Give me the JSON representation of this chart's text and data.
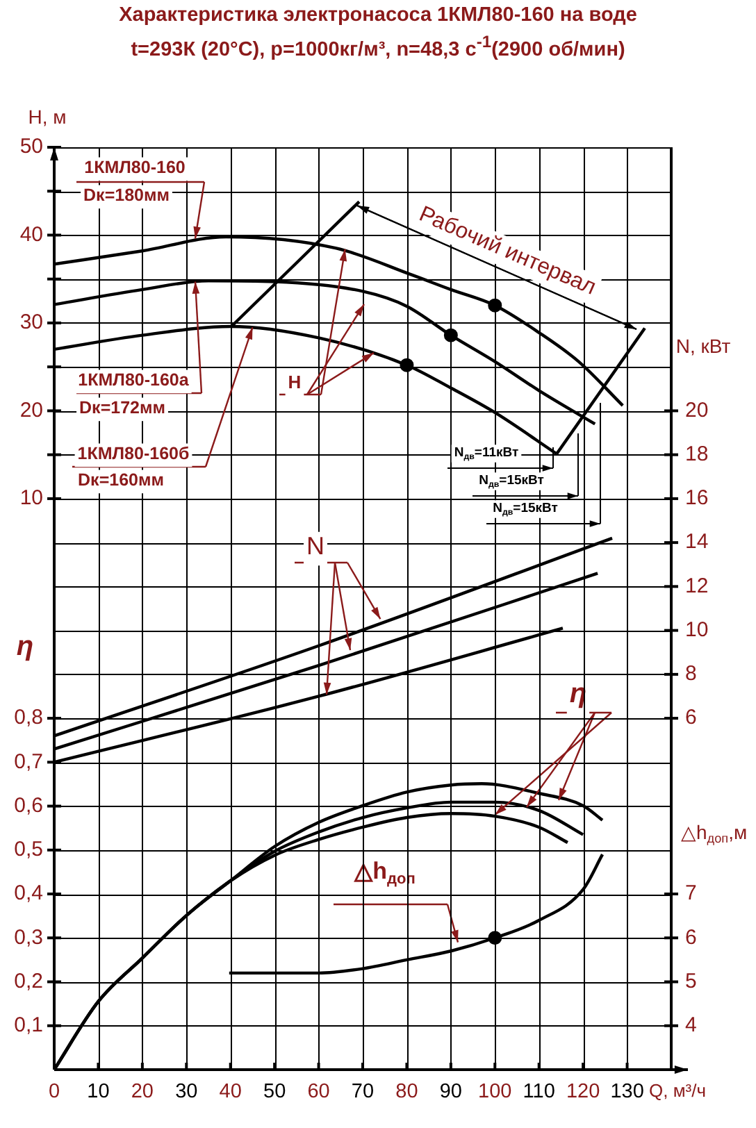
{
  "chart_data": [
    {
      "type": "line",
      "title": "Характеристика электронасоса 1КМЛ80-160 на воде",
      "subtitle": "t=293К (20°C), p=1000кг/м³, n=48,3 с$^{-1}$(2900 об/мин)",
      "xlabel": "Q, м³/ч",
      "ylabel": "H, м",
      "y2label": "N, кВт",
      "xlim": [
        0,
        140
      ],
      "xticks": [
        0,
        10,
        20,
        30,
        40,
        50,
        60,
        70,
        80,
        90,
        100,
        110,
        120,
        130,
        {
          "value": 140,
          "label": null
        }
      ],
      "ylim": [
        -55,
        50
      ],
      "yticks": [
        10,
        {
          "value": 15,
          "label": null
        },
        20,
        {
          "value": 25,
          "label": null
        },
        30,
        {
          "value": 35,
          "label": null
        },
        40,
        {
          "value": 45,
          "label": null
        },
        50
      ],
      "y2lim": [
        -10,
        32
      ],
      "y2ticks": [
        6,
        8,
        10,
        12,
        14,
        16,
        18,
        20
      ],
      "grid": true,
      "marker": "none",
      "series": [
        {
          "color": "#000000",
          "x": [
            0,
            20,
            39,
            64,
            81,
            90,
            100,
            110,
            119,
            129
          ],
          "values": [
            36.7,
            38.2,
            39.8,
            38.5,
            35.5,
            33.8,
            32,
            28.9,
            25.6,
            20.6
          ]
        },
        {
          "color": "#000000",
          "x": [
            0,
            20,
            35,
            50,
            70,
            80,
            90,
            100,
            110,
            122.7
          ],
          "values": [
            32.1,
            33.8,
            34.8,
            34.7,
            33.6,
            31.9,
            28.6,
            25.6,
            22.3,
            18.5
          ]
        },
        {
          "color": "#000000",
          "x": [
            0,
            20,
            40,
            60,
            80,
            90,
            100,
            114
          ],
          "values": [
            27,
            28.6,
            29.6,
            28.3,
            25.2,
            22.6,
            19.8,
            15.1
          ]
        },
        {
          "color": "#000000",
          "x": [
            40,
            69.2
          ],
          "values": [
            29.5,
            43.8
          ]
        },
        {
          "color": "#000000",
          "x": [
            114,
            134
          ],
          "values": [
            15.1,
            29.4
          ]
        },
        {
          "type": "scatter",
          "marker": "circle",
          "color": "#000000",
          "x": [
            100,
            90,
            80
          ],
          "values": [
            32,
            28.6,
            25.2
          ]
        },
        {
          "color": "#000000",
          "axis": "y2",
          "x": [
            0,
            60,
            126.6
          ],
          "values": [
            5.2,
            9.3,
            14.2
          ]
        },
        {
          "color": "#000000",
          "axis": "y2",
          "x": [
            0,
            60,
            123.3
          ],
          "values": [
            4.6,
            8.4,
            12.6
          ]
        },
        {
          "color": "#000000",
          "axis": "y2",
          "x": [
            0,
            60,
            115.4
          ],
          "values": [
            4,
            7,
            10.1
          ]
        }
      ],
      "annotations": [
        {
          "text": "1КМЛ80-160",
          "x": 32,
          "y": 39.6
        },
        "Dк=180мм",
        {
          "text": "1КМЛ80-160а",
          "x": 32,
          "y": 34.7
        },
        "Dк=172мм",
        {
          "text": "1КМЛ80-160б",
          "x": 45,
          "y": 29.5
        },
        "Dк=160мм",
        "Рабочий интервал",
        {
          "text": "H",
          "x": 66,
          "y": 38.4
        },
        {
          "text": "N",
          "x": 74,
          "y": -3.7
        },
        "N$_{дв}$=11кВт",
        "N$_{дв}$=15кВт",
        "N$_{дв}$=15кВт"
      ]
    },
    {
      "type": "line",
      "ylabel": "η",
      "y2label": "△h$_{доп}$,м",
      "xlim": [
        0,
        140
      ],
      "xticks": [
        0,
        10,
        20,
        30,
        40,
        50,
        60,
        70,
        80,
        90,
        100,
        110,
        120,
        130,
        {
          "value": 140,
          "label": null
        }
      ],
      "tick_labels": "y",
      "ylim": [
        0,
        2.1
      ],
      "yticks": [
        {
          "value": 0.1,
          "label": "0,1"
        },
        {
          "value": 0.2,
          "label": "0,2"
        },
        {
          "value": 0.3,
          "label": "0,3"
        },
        {
          "value": 0.4,
          "label": "0,4"
        },
        {
          "value": 0.5,
          "label": "0,5"
        },
        {
          "value": 0.6,
          "label": "0,6"
        },
        {
          "value": 0.7,
          "label": "0,7"
        },
        {
          "value": 0.8,
          "label": "0,8"
        }
      ],
      "y2lim": [
        3,
        24
      ],
      "y2ticks": [
        4,
        5,
        6,
        7
      ],
      "grid": true,
      "marker": "none",
      "series": [
        {
          "color": "#000000",
          "x": [
            0,
            10,
            20,
            30,
            40,
            50,
            60,
            70,
            80,
            90,
            97,
            110,
            120,
            124.4
          ],
          "values": [
            0,
            0.155,
            0.254,
            0.351,
            0.43,
            0.508,
            0.563,
            0.601,
            0.632,
            0.648,
            0.651,
            0.629,
            0.601,
            0.568
          ]
        },
        {
          "color": "#000000",
          "x": [
            0,
            10,
            20,
            30,
            40,
            50,
            60,
            70,
            80,
            90,
            100,
            110,
            120
          ],
          "values": [
            0,
            0.155,
            0.254,
            0.351,
            0.43,
            0.497,
            0.541,
            0.574,
            0.596,
            0.609,
            0.609,
            0.59,
            0.535
          ]
        },
        {
          "color": "#000000",
          "x": [
            0,
            10,
            20,
            30,
            40,
            50,
            60,
            70,
            80,
            90,
            100,
            110,
            116.5
          ],
          "values": [
            0,
            0.155,
            0.254,
            0.351,
            0.43,
            0.488,
            0.524,
            0.552,
            0.574,
            0.583,
            0.577,
            0.552,
            0.517
          ]
        },
        {
          "color": "#000000",
          "axis": "y2",
          "x": [
            39.7,
            60,
            70,
            80,
            90,
            100,
            110,
            120,
            124.4
          ],
          "values": [
            5.2,
            5.2,
            5.3,
            5.5,
            5.7,
            6,
            6.4,
            7.1,
            7.9
          ]
        },
        {
          "type": "scatter",
          "marker": "circle",
          "color": "#000000",
          "axis": "y2",
          "x": [
            100
          ],
          "values": [
            6
          ]
        }
      ],
      "annotations": [
        {
          "text": "η",
          "x": 100,
          "y": 0.58
        },
        {
          "text": "△h$_{доп}$",
          "x": 91.6,
          "y": 0.29
        }
      ]
    }
  ]
}
